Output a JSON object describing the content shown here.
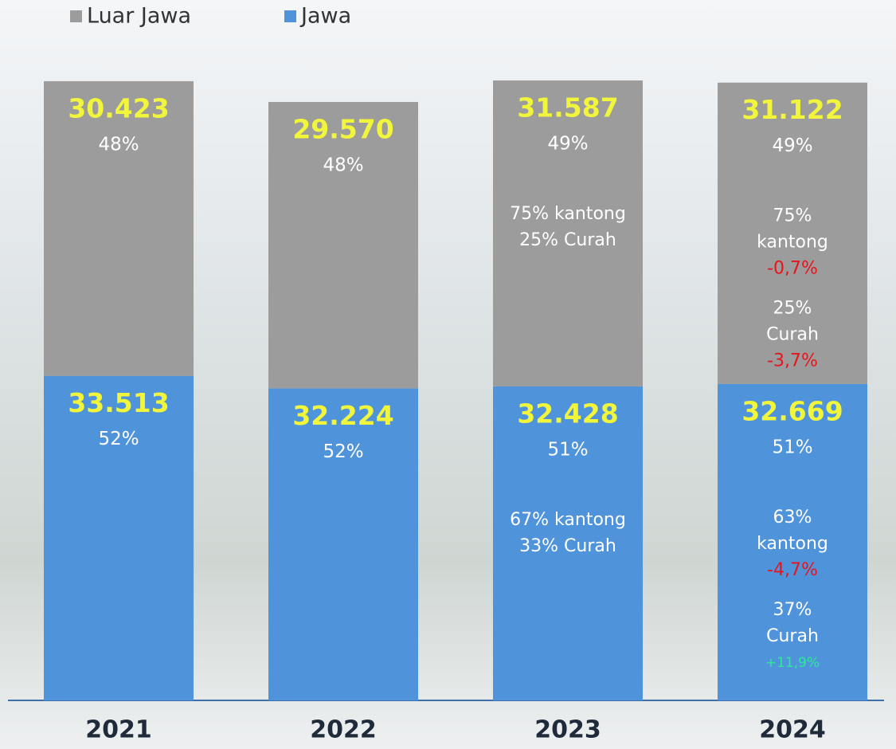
{
  "chart_data": {
    "type": "stacked_bar",
    "categories": [
      "2021",
      "2022",
      "2023",
      "2024"
    ],
    "series": [
      {
        "name": "Jawa",
        "color": "#4f93da",
        "values": [
          33513,
          32224,
          32428,
          32669
        ],
        "value_labels": [
          "33.513",
          "32.224",
          "32.428",
          "32.669"
        ],
        "shares": [
          52,
          52,
          51,
          51
        ],
        "share_labels": [
          "52%",
          "52%",
          "51%",
          "51%"
        ]
      },
      {
        "name": "Luar Jawa",
        "color": "#9c9c9c",
        "values": [
          30423,
          29570,
          31587,
          31122
        ],
        "value_labels": [
          "30.423",
          "29.570",
          "31.587",
          "31.122"
        ],
        "shares": [
          48,
          48,
          49,
          49
        ],
        "share_labels": [
          "48%",
          "48%",
          "49%",
          "49%"
        ]
      }
    ],
    "ylim": [
      0,
      65000
    ],
    "value_label_color": "#f1f53c",
    "annotations": [
      {
        "series": 1,
        "category": 2,
        "groups": [
          [
            {
              "text": "75% kantong",
              "color": "#ffffff"
            },
            {
              "text": "25% Curah",
              "color": "#ffffff"
            }
          ]
        ]
      },
      {
        "series": 1,
        "category": 3,
        "groups": [
          [
            {
              "text": "75%",
              "color": "#ffffff"
            },
            {
              "text": "kantong",
              "color": "#ffffff"
            },
            {
              "text": "-0,7%",
              "color": "#e8141c"
            }
          ],
          [
            {
              "text": "25%",
              "color": "#ffffff"
            },
            {
              "text": "Curah",
              "color": "#ffffff"
            },
            {
              "text": "-3,7%",
              "color": "#e8141c"
            }
          ]
        ]
      },
      {
        "series": 0,
        "category": 2,
        "groups": [
          [
            {
              "text": "67% kantong",
              "color": "#ffffff"
            },
            {
              "text": "33% Curah",
              "color": "#ffffff"
            }
          ]
        ]
      },
      {
        "series": 0,
        "category": 3,
        "groups": [
          [
            {
              "text": "63%",
              "color": "#ffffff"
            },
            {
              "text": "kantong",
              "color": "#ffffff"
            },
            {
              "text": "-4,7%",
              "color": "#e8141c"
            }
          ],
          [
            {
              "text": "37%",
              "color": "#ffffff"
            },
            {
              "text": "Curah",
              "color": "#ffffff"
            },
            {
              "text": "+11,9%",
              "color": "#2ee89a",
              "small": true
            }
          ]
        ]
      }
    ]
  }
}
